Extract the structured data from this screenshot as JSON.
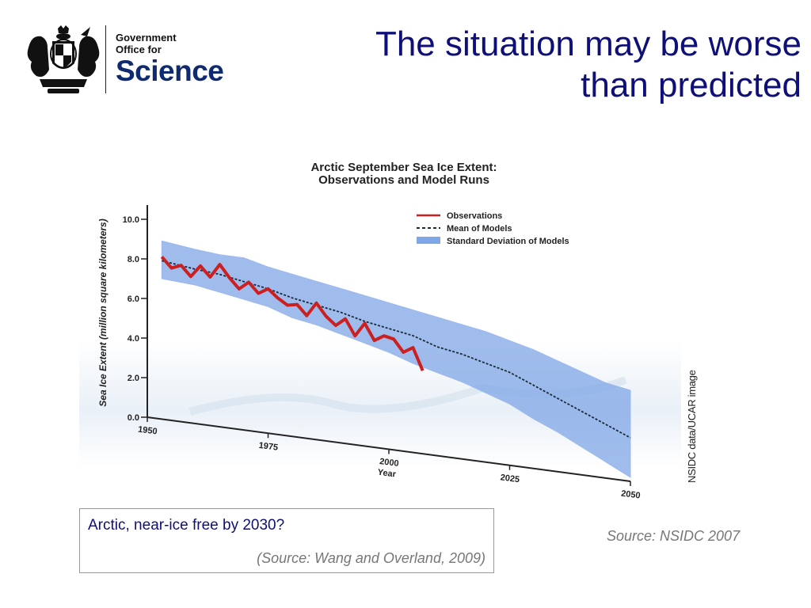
{
  "logo": {
    "line1": "Government",
    "line2": "Office for",
    "line3": "Science",
    "crest_icon": "royal-coat-of-arms-icon"
  },
  "slide_title": {
    "line1": "The situation may be worse",
    "line2": "than predicted"
  },
  "chart_data": {
    "type": "line",
    "title_line1": "Arctic September Sea Ice Extent:",
    "title_line2": "Observations and Model Runs",
    "ylabel": "Sea Ice Extent (million square kilometers)",
    "xlabel": "Year",
    "ylim": [
      0,
      10
    ],
    "xlim": [
      1950,
      2050
    ],
    "y_ticks": [
      "0.0",
      "2.0",
      "4.0",
      "6.0",
      "8.0",
      "10.0"
    ],
    "x_ticks": [
      "1950",
      "1975",
      "2000",
      "2025",
      "2050"
    ],
    "legend_position": "top-right",
    "colors": {
      "observations": "#cc2020",
      "mean": "#1a2a3a",
      "std_band": "#7fa6e6"
    },
    "series": [
      {
        "name": "Observations",
        "x": [
          1953,
          1955,
          1957,
          1959,
          1961,
          1963,
          1965,
          1967,
          1969,
          1971,
          1973,
          1975,
          1977,
          1979,
          1981,
          1983,
          1985,
          1987,
          1989,
          1991,
          1993,
          1995,
          1997,
          1999,
          2001,
          2003,
          2005,
          2007
        ],
        "y": [
          8.2,
          7.7,
          7.9,
          7.4,
          8.0,
          7.5,
          8.2,
          7.6,
          7.1,
          7.5,
          7.0,
          7.3,
          6.9,
          6.6,
          6.7,
          6.2,
          6.9,
          6.3,
          5.9,
          6.3,
          5.5,
          6.2,
          5.4,
          5.7,
          5.6,
          5.0,
          5.3,
          4.2
        ]
      },
      {
        "name": "Mean of Models",
        "x": [
          1953,
          1960,
          1965,
          1970,
          1975,
          1980,
          1985,
          1990,
          1995,
          2000,
          2005,
          2010,
          2015,
          2020,
          2025,
          2030,
          2035,
          2040,
          2045,
          2050
        ],
        "y": [
          8.0,
          7.8,
          7.7,
          7.5,
          7.3,
          7.0,
          6.8,
          6.6,
          6.3,
          6.1,
          5.9,
          5.5,
          5.3,
          5.0,
          4.7,
          4.2,
          3.7,
          3.2,
          2.7,
          2.2
        ]
      },
      {
        "name": "Standard Deviation of Models",
        "x": [
          1953,
          1960,
          1965,
          1970,
          1975,
          1980,
          1985,
          1990,
          1995,
          2000,
          2005,
          2010,
          2015,
          2020,
          2025,
          2030,
          2035,
          2040,
          2045,
          2050
        ],
        "upper": [
          9.0,
          8.8,
          8.7,
          8.7,
          8.4,
          8.2,
          8.0,
          7.8,
          7.6,
          7.4,
          7.2,
          7.0,
          6.8,
          6.6,
          6.3,
          6.0,
          5.6,
          5.2,
          4.8,
          4.6
        ],
        "lower": [
          7.1,
          7.0,
          6.8,
          6.6,
          6.4,
          6.0,
          5.8,
          5.5,
          5.2,
          4.9,
          4.5,
          4.2,
          3.9,
          3.5,
          3.1,
          2.5,
          2.0,
          1.4,
          0.8,
          0.2
        ]
      }
    ]
  },
  "image_credit": "NSIDC data/UCAR image",
  "note_box": {
    "main": "Arctic, near-ice free by 2030?",
    "source": "(Source: Wang and Overland, 2009)"
  },
  "source_right": "Source: NSIDC 2007"
}
